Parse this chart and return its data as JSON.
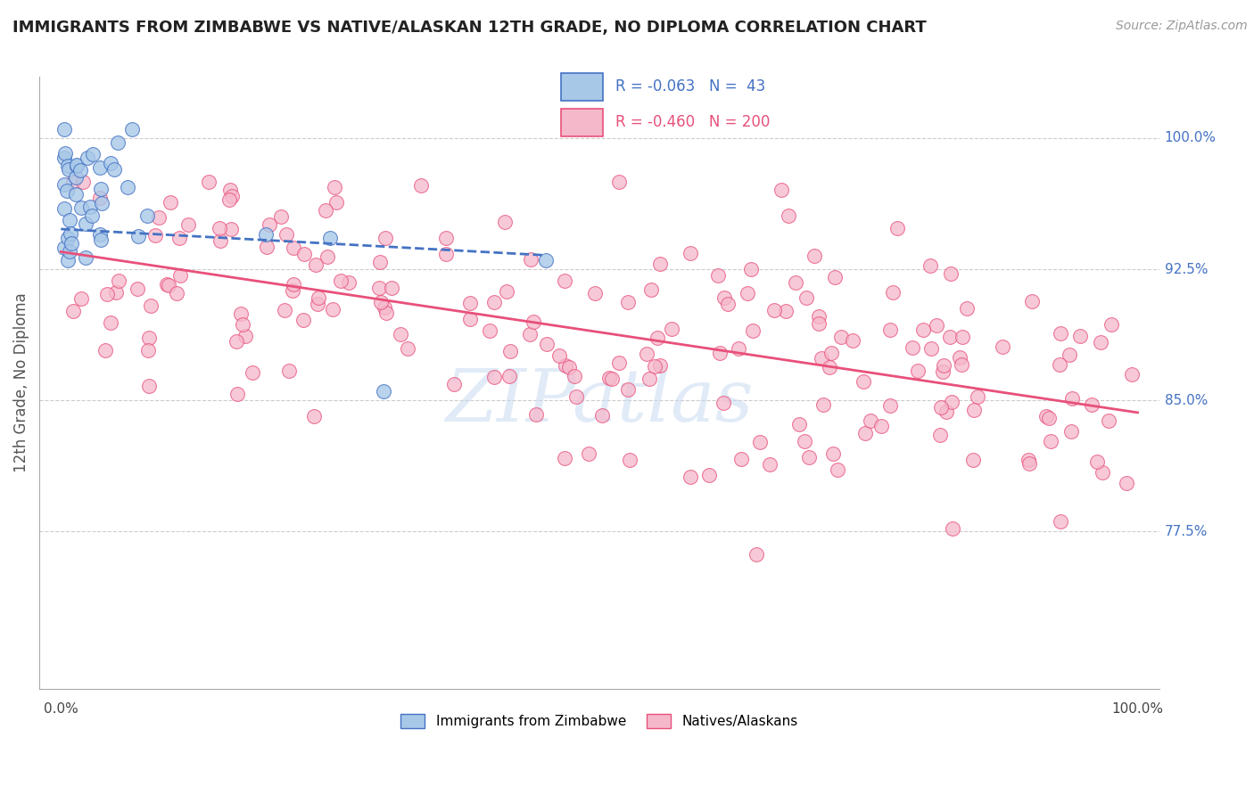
{
  "title": "IMMIGRANTS FROM ZIMBABWE VS NATIVE/ALASKAN 12TH GRADE, NO DIPLOMA CORRELATION CHART",
  "source": "Source: ZipAtlas.com",
  "ylabel": "12th Grade, No Diploma",
  "xlim": [
    -0.02,
    1.02
  ],
  "ylim": [
    0.685,
    1.035
  ],
  "yticks": [
    0.775,
    0.85,
    0.925,
    1.0
  ],
  "ytick_labels": [
    "77.5%",
    "85.0%",
    "92.5%",
    "100.0%"
  ],
  "xtick_labels_pos": [
    0.0,
    1.0
  ],
  "xtick_labels": [
    "0.0%",
    "100.0%"
  ],
  "blue_scatter_color": "#a8c8e8",
  "pink_scatter_color": "#f5b8cb",
  "blue_line_color": "#4472c4",
  "pink_line_color": "#e8507a",
  "background_color": "#ffffff",
  "grid_color": "#cccccc",
  "R_blue": -0.063,
  "N_blue": 43,
  "R_pink": -0.46,
  "N_pink": 200,
  "watermark_text": "ZIPatlas",
  "blue_line_start_x": 0.0,
  "blue_line_start_y": 0.948,
  "blue_line_end_x": 0.45,
  "blue_line_end_y": 0.933,
  "pink_line_start_x": 0.0,
  "pink_line_start_y": 0.935,
  "pink_line_end_x": 1.0,
  "pink_line_end_y": 0.843
}
